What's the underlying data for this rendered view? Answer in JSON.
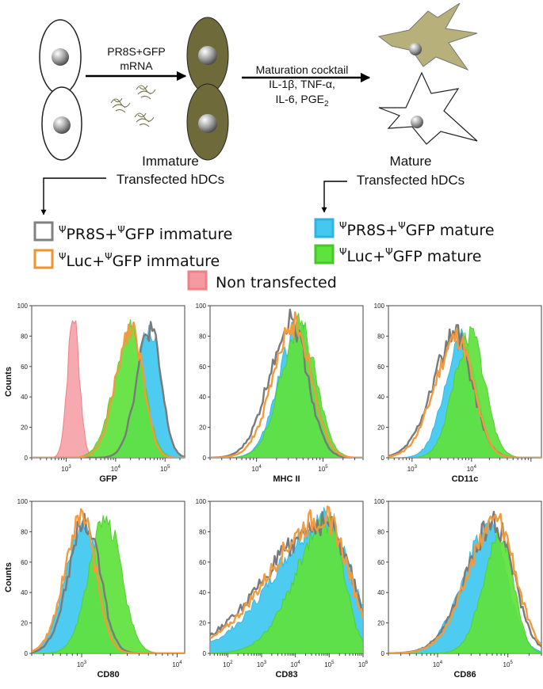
{
  "schematic": {
    "step1_line1": "PR8S+GFP",
    "step1_line2": "mRNA",
    "step2_line1": "Maturation cocktail",
    "step2_line2": "IL-1β, TNF-α,",
    "step2_line3": "IL-6, PGE",
    "step2_line3_sub": "2",
    "immature_line1": "Immature",
    "immature_line2": "Transfected hDCs",
    "mature_line1": "Mature",
    "mature_line2": "Transfected hDCs"
  },
  "legend": {
    "psi": "Ψ",
    "items": [
      {
        "key": "pr8s_immature",
        "a": "PR8S+",
        "b": "GFP immature",
        "psi_first": true,
        "psi_mid": true,
        "color": "#808080",
        "filled": false
      },
      {
        "key": "luc_immature",
        "a": "Luc+",
        "b": "GFP immature",
        "psi_first": true,
        "psi_mid": true,
        "color": "#f0922e",
        "filled": false
      },
      {
        "key": "non_transfected",
        "a": "Non transfected",
        "b": "",
        "psi_first": false,
        "psi_mid": false,
        "color": "#f07f86",
        "filled": true
      },
      {
        "key": "pr8s_mature",
        "a": "PR8S+",
        "b": "GFP mature",
        "psi_first": true,
        "psi_mid": true,
        "color": "#45c8f0",
        "filled": true
      },
      {
        "key": "luc_mature",
        "a": "Luc+",
        "b": "GFP mature",
        "psi_first": true,
        "psi_mid": true,
        "color": "#5ee23c",
        "filled": true
      }
    ]
  },
  "colors": {
    "non": "#f59aa0",
    "non_edge": "#f07f86",
    "pr8s_mature": "#45c8f0",
    "luc_mature": "#5ee23c",
    "pr8s_immature": "#7a7a7a",
    "luc_immature": "#f39a3c",
    "cell_fill": "#6e6a3a",
    "cell_fill_light": "#b8b07a"
  },
  "chart_data": [
    {
      "type": "histogram",
      "xlabel": "GFP",
      "ylabel": "Counts",
      "ylim": [
        0,
        100
      ],
      "yticks": [
        "100",
        "80",
        "60",
        "40",
        "20",
        "0"
      ],
      "xscale": "log",
      "xlim": [
        200,
        250000
      ],
      "xticks": [
        {
          "base": "10",
          "exp": "3",
          "v": 1000
        },
        {
          "base": "10",
          "exp": "4",
          "v": 10000
        },
        {
          "base": "10",
          "exp": "5",
          "v": 100000
        }
      ],
      "series": [
        {
          "name": "Non transfected",
          "peak": 1400,
          "width": 0.12,
          "height": 93,
          "skew": 0
        },
        {
          "name": "ΨPR8S+ΨGFP mature",
          "peak": 50000,
          "width": 0.22,
          "height": 84,
          "skew": 0.25
        },
        {
          "name": "ΨLuc+ΨGFP mature",
          "peak": 21000,
          "width": 0.26,
          "height": 85,
          "skew": 0.3
        },
        {
          "name": "ΨPR8S+ΨGFP immature",
          "peak": 50000,
          "width": 0.22,
          "height": 85,
          "skew": 0.25
        },
        {
          "name": "ΨLuc+ΨGFP immature",
          "peak": 21000,
          "width": 0.24,
          "height": 86,
          "skew": 0.3
        }
      ]
    },
    {
      "type": "histogram",
      "xlabel": "MHC II",
      "ylabel": "",
      "ylim": [
        0,
        100
      ],
      "yticks": [
        "100",
        "80",
        "60",
        "40",
        "20",
        "0"
      ],
      "xscale": "log",
      "xlim": [
        2000,
        400000
      ],
      "xticks": [
        {
          "base": "10",
          "exp": "4",
          "v": 10000
        },
        {
          "base": "10",
          "exp": "5",
          "v": 100000
        }
      ],
      "series": [
        {
          "name": "ΨPR8S+ΨGFP mature",
          "peak": 42000,
          "width": 0.24,
          "height": 86,
          "skew": 0.2
        },
        {
          "name": "ΨLuc+ΨGFP mature",
          "peak": 45000,
          "width": 0.24,
          "height": 87,
          "skew": 0.2
        },
        {
          "name": "ΨPR8S+ΨGFP immature",
          "peak": 33000,
          "width": 0.25,
          "height": 90,
          "skew": 0.3
        },
        {
          "name": "ΨLuc+ΨGFP immature",
          "peak": 38000,
          "width": 0.25,
          "height": 88,
          "skew": 0.3
        }
      ]
    },
    {
      "type": "histogram",
      "xlabel": "CD11c",
      "ylabel": "",
      "ylim": [
        0,
        100
      ],
      "yticks": [
        "100",
        "80",
        "60",
        "40",
        "20",
        "0"
      ],
      "xscale": "log",
      "xlim": [
        400,
        150000
      ],
      "xticks": [
        {
          "base": "10",
          "exp": "3",
          "v": 1000
        },
        {
          "base": "10",
          "exp": "4",
          "v": 10000
        }
      ],
      "series": [
        {
          "name": "ΨPR8S+ΨGFP mature",
          "peak": 7000,
          "width": 0.24,
          "height": 78,
          "skew": 0.2
        },
        {
          "name": "ΨLuc+ΨGFP mature",
          "peak": 9500,
          "width": 0.25,
          "height": 80,
          "skew": 0.1
        },
        {
          "name": "ΨPR8S+ΨGFP immature",
          "peak": 5500,
          "width": 0.28,
          "height": 80,
          "skew": 0.4
        },
        {
          "name": "ΨLuc+ΨGFP immature",
          "peak": 5800,
          "width": 0.27,
          "height": 79,
          "skew": 0.4
        }
      ]
    },
    {
      "type": "histogram",
      "xlabel": "CD80",
      "ylabel": "Counts",
      "ylim": [
        0,
        100
      ],
      "yticks": [
        "100",
        "80",
        "60",
        "40",
        "20",
        "0"
      ],
      "xscale": "log",
      "xlim": [
        300,
        12000
      ],
      "xticks": [
        {
          "base": "10",
          "exp": "3",
          "v": 1000
        },
        {
          "base": "10",
          "exp": "4",
          "v": 10000
        }
      ],
      "series": [
        {
          "name": "ΨPR8S+ΨGFP mature",
          "peak": 1050,
          "width": 0.16,
          "height": 85,
          "skew": 0.2
        },
        {
          "name": "ΨLuc+ΨGFP mature",
          "peak": 1800,
          "width": 0.16,
          "height": 88,
          "skew": 0.1
        },
        {
          "name": "ΨPR8S+ΨGFP immature",
          "peak": 1100,
          "width": 0.15,
          "height": 88,
          "skew": 0.2
        },
        {
          "name": "ΨLuc+ΨGFP immature",
          "peak": 1000,
          "width": 0.15,
          "height": 89,
          "skew": 0.2
        }
      ]
    },
    {
      "type": "histogram",
      "xlabel": "CD83",
      "ylabel": "",
      "ylim": [
        0,
        100
      ],
      "yticks": [
        "100",
        "80",
        "60",
        "40",
        "20",
        "0"
      ],
      "xscale": "log",
      "xlim": [
        30,
        1000000
      ],
      "xticks": [
        {
          "base": "10",
          "exp": "2",
          "v": 100
        },
        {
          "base": "10",
          "exp": "3",
          "v": 1000
        },
        {
          "base": "10",
          "exp": "4",
          "v": 10000
        },
        {
          "base": "10",
          "exp": "5",
          "v": 100000
        },
        {
          "base": "10",
          "exp": "6",
          "v": 1000000
        }
      ],
      "series": [
        {
          "name": "ΨPR8S+ΨGFP mature",
          "peak": 90000,
          "width": 0.7,
          "height": 88,
          "skew": 1.2
        },
        {
          "name": "ΨLuc+ΨGFP mature",
          "peak": 100000,
          "width": 0.45,
          "height": 86,
          "skew": 1.2
        },
        {
          "name": "ΨPR8S+ΨGFP immature",
          "peak": 80000,
          "width": 0.75,
          "height": 86,
          "skew": 1.3
        },
        {
          "name": "ΨLuc+ΨGFP immature",
          "peak": 75000,
          "width": 0.7,
          "height": 89,
          "skew": 1.3
        }
      ]
    },
    {
      "type": "histogram",
      "xlabel": "CD86",
      "ylabel": "",
      "ylim": [
        0,
        100
      ],
      "yticks": [
        "100",
        "80",
        "60",
        "40",
        "20",
        "0"
      ],
      "xscale": "log",
      "xlim": [
        2000,
        300000
      ],
      "xticks": [
        {
          "base": "10",
          "exp": "4",
          "v": 10000
        },
        {
          "base": "10",
          "exp": "5",
          "v": 100000
        }
      ],
      "series": [
        {
          "name": "ΨPR8S+ΨGFP mature",
          "peak": 55000,
          "width": 0.25,
          "height": 84,
          "skew": 0.5
        },
        {
          "name": "ΨLuc+ΨGFP mature",
          "peak": 80000,
          "width": 0.18,
          "height": 78,
          "skew": 0.4
        },
        {
          "name": "ΨPR8S+ΨGFP immature",
          "peak": 65000,
          "width": 0.27,
          "height": 86,
          "skew": 0.5
        },
        {
          "name": "ΨLuc+ΨGFP immature",
          "peak": 70000,
          "width": 0.27,
          "height": 88,
          "skew": 0.5
        }
      ]
    }
  ]
}
